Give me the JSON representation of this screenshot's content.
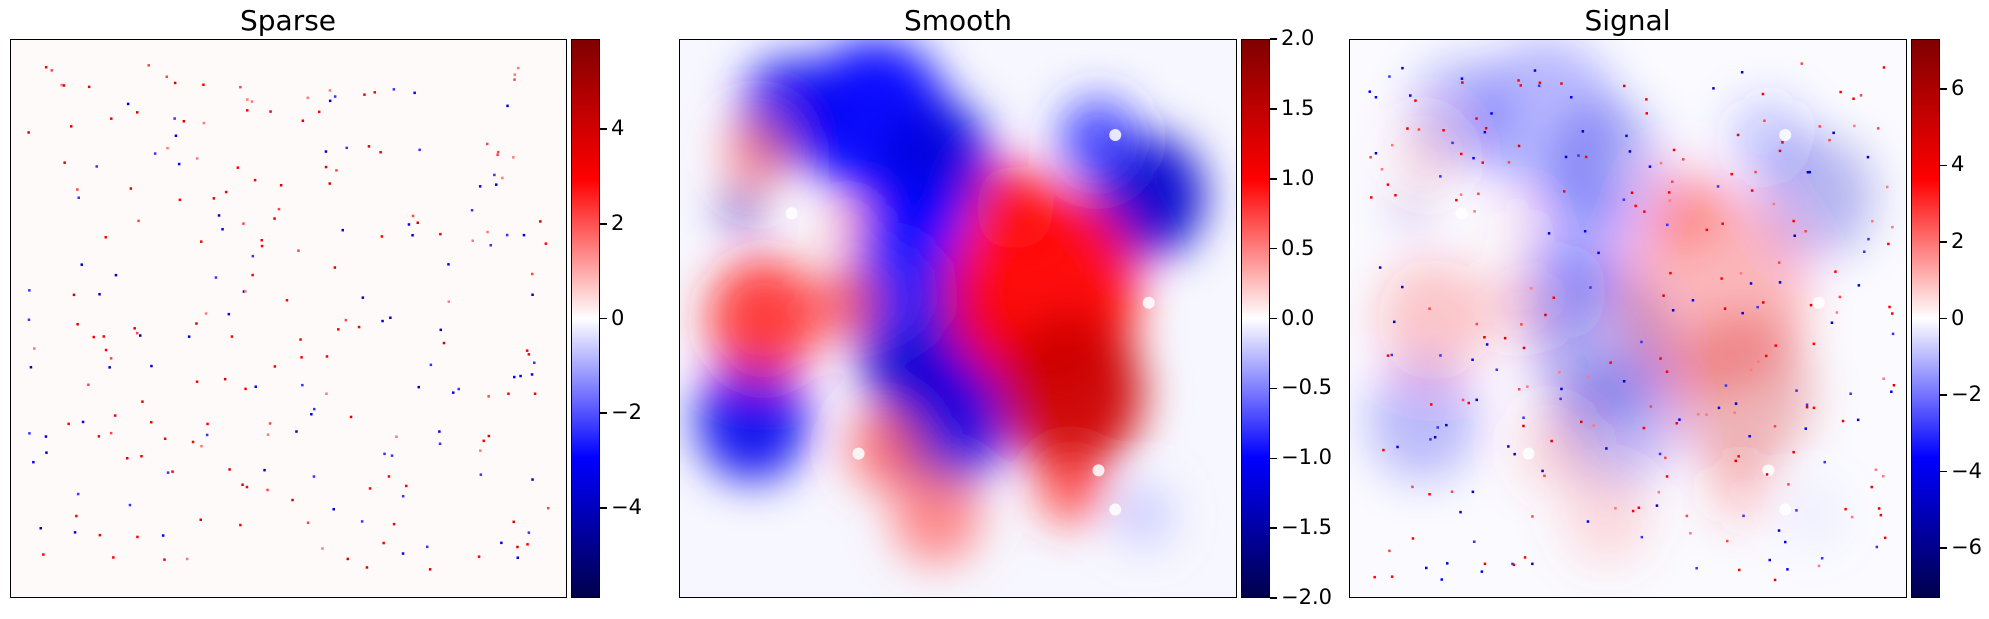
{
  "colormap": {
    "name": "seismic",
    "stops": [
      "#00004c",
      "#0000ff",
      "#ffffff",
      "#ff0000",
      "#800000"
    ]
  },
  "chart_data": [
    {
      "type": "heatmap",
      "title": "Sparse",
      "description": "mostly zero field with scattered single-pixel spikes",
      "colorbar": {
        "vmin": -5.9,
        "vmax": 5.9,
        "ticks": [
          {
            "value": -4,
            "label": "−4"
          },
          {
            "value": -2,
            "label": "−2"
          },
          {
            "value": 0,
            "label": "0"
          },
          {
            "value": 2,
            "label": "2"
          },
          {
            "value": 4,
            "label": "4"
          }
        ]
      }
    },
    {
      "type": "heatmap",
      "title": "Smooth",
      "description": "smooth blobs: negative lobes on upper-left/center, positive lobe on right-center",
      "colorbar": {
        "vmin": -2.0,
        "vmax": 2.0,
        "ticks": [
          {
            "value": -2.0,
            "label": "−2.0"
          },
          {
            "value": -1.5,
            "label": "−1.5"
          },
          {
            "value": -1.0,
            "label": "−1.0"
          },
          {
            "value": -0.5,
            "label": "−0.5"
          },
          {
            "value": 0.0,
            "label": "0.0"
          },
          {
            "value": 0.5,
            "label": "0.5"
          },
          {
            "value": 1.0,
            "label": "1.0"
          },
          {
            "value": 1.5,
            "label": "1.5"
          },
          {
            "value": 2.0,
            "label": "2.0"
          }
        ]
      }
    },
    {
      "type": "heatmap",
      "title": "Signal",
      "description": "sum of sparse spikes and smooth field",
      "colorbar": {
        "vmin": -7.3,
        "vmax": 7.3,
        "ticks": [
          {
            "value": -6,
            "label": "−6"
          },
          {
            "value": -4,
            "label": "−4"
          },
          {
            "value": -2,
            "label": "−2"
          },
          {
            "value": 0,
            "label": "0"
          },
          {
            "value": 2,
            "label": "2"
          },
          {
            "value": 4,
            "label": "4"
          },
          {
            "value": 6,
            "label": "6"
          }
        ]
      }
    }
  ]
}
